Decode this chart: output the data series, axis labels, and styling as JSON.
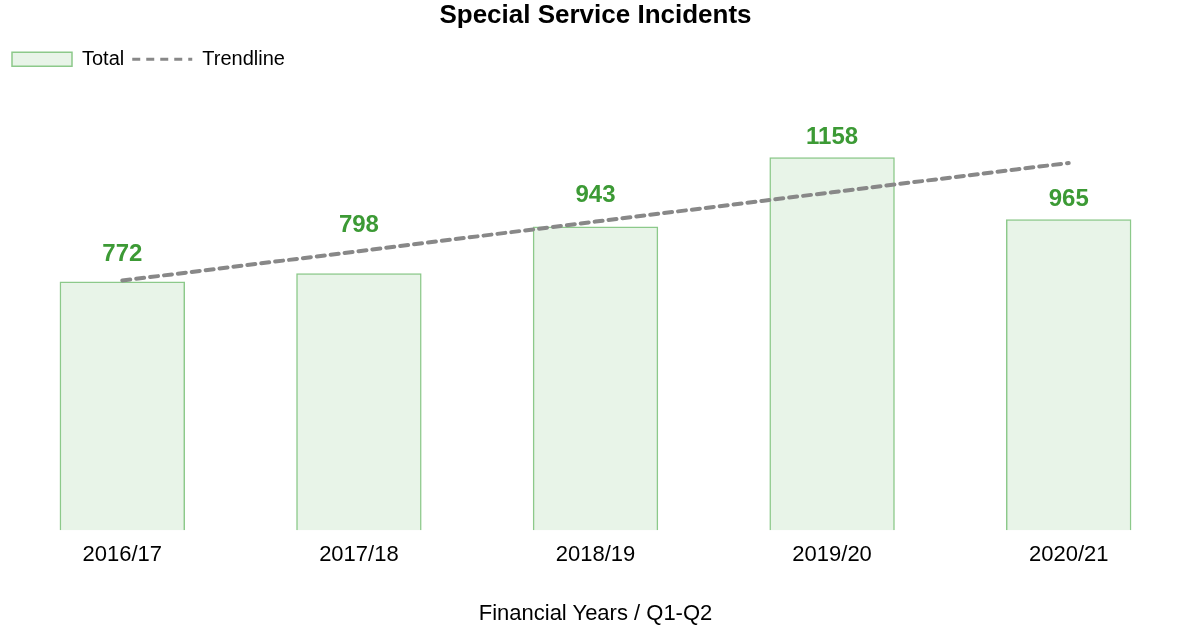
{
  "chart_data": {
    "type": "bar",
    "title": "Special Service Incidents",
    "xlabel": "Financial Years / Q1-Q2",
    "categories": [
      "2016/17",
      "2017/18",
      "2018/19",
      "2019/20",
      "2020/21"
    ],
    "series": [
      {
        "name": "Total",
        "color": "#8cc98a",
        "values": [
          772,
          798,
          943,
          1158,
          965
        ],
        "value_labels": [
          "772",
          "798",
          "943",
          "1158",
          "965"
        ]
      },
      {
        "name": "Trendline",
        "type": "line",
        "color": "#888888",
        "line_style": "dashed",
        "marker": "none",
        "values": [
          775,
          866,
          958,
          1049,
          1140
        ]
      }
    ],
    "tick_labels": "x",
    "grid": false,
    "legend": "top left"
  }
}
